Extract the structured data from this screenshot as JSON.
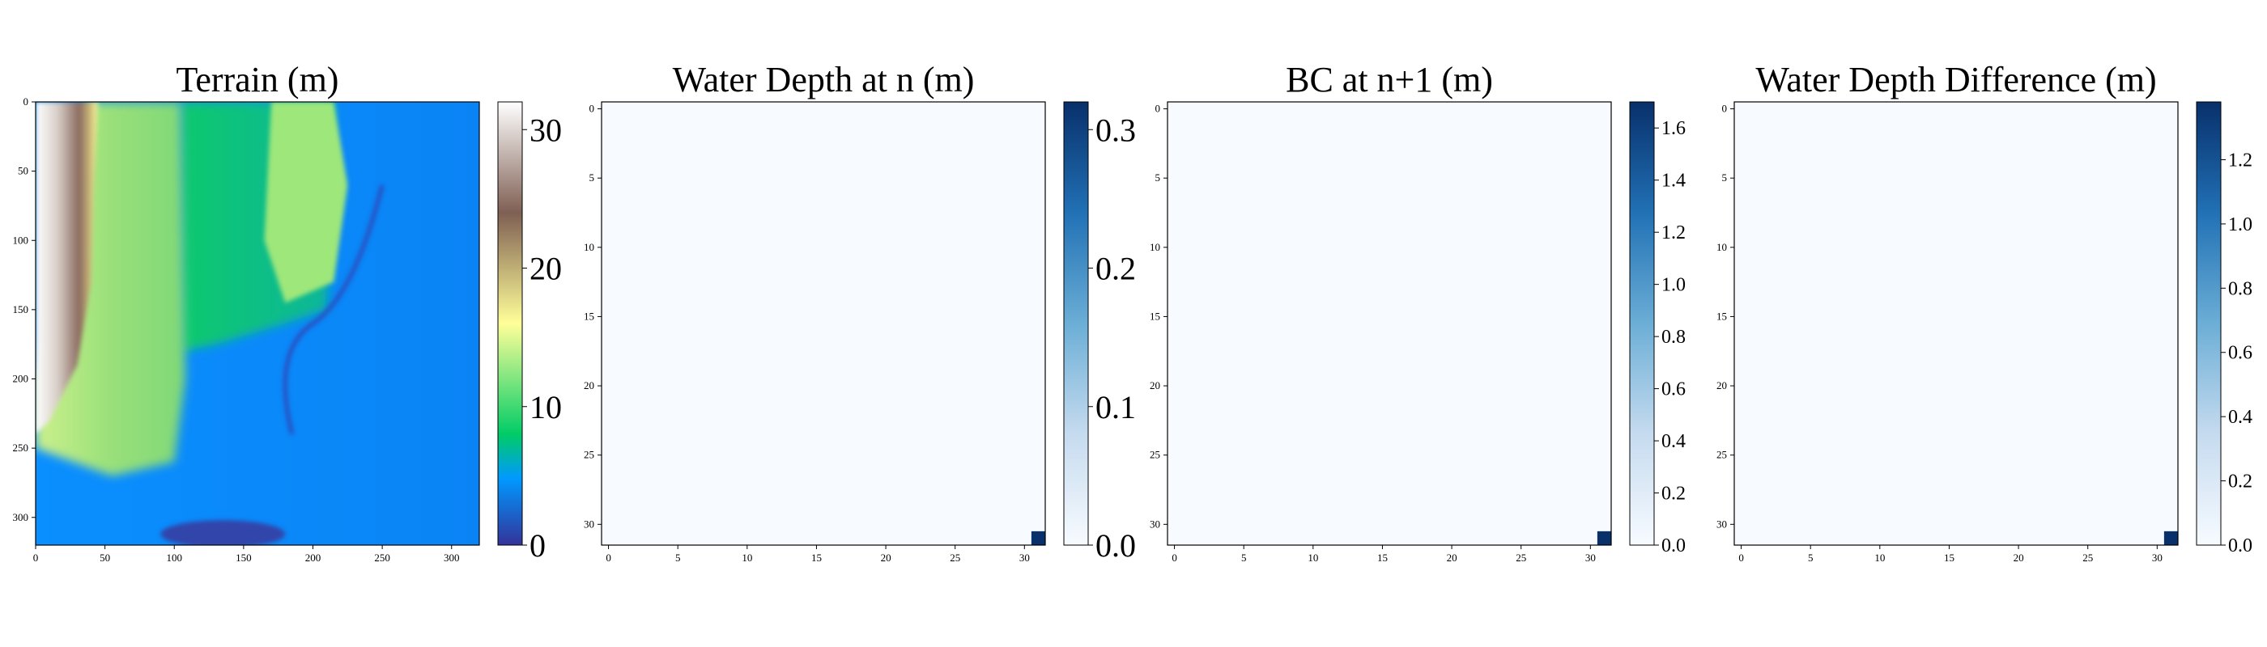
{
  "chart_data": [
    {
      "type": "heatmap",
      "title": "Terrain (m)",
      "xlabel": "",
      "ylabel": "",
      "x_ticks": [
        0,
        50,
        100,
        150,
        200,
        250,
        300
      ],
      "y_ticks": [
        0,
        50,
        100,
        150,
        200,
        250,
        300
      ],
      "xlim": [
        0,
        320
      ],
      "ylim": [
        0,
        320
      ],
      "colorbar": {
        "min": 0,
        "max": 32,
        "ticks": [
          0,
          10,
          20,
          30
        ],
        "tick_labels": [
          "0",
          "10",
          "20",
          "30"
        ],
        "colormap": "terrain"
      },
      "features": {
        "ridge_x_range": [
          0,
          45
        ],
        "green_band_x_range": [
          45,
          115
        ],
        "green_patch_upper_right_peak": [
          190,
          0
        ],
        "channel_path": [
          [
            250,
            60
          ],
          [
            200,
            160
          ],
          [
            185,
            240
          ]
        ],
        "low_area_bottom": [
          [
            100,
            305
          ],
          [
            180,
            320
          ]
        ]
      }
    },
    {
      "type": "heatmap",
      "title": "Water Depth at n (m)",
      "xlabel": "",
      "ylabel": "",
      "x_ticks": [
        0,
        5,
        10,
        15,
        20,
        25,
        30
      ],
      "y_ticks": [
        0,
        5,
        10,
        15,
        20,
        25,
        30
      ],
      "grid_size": [
        32,
        32
      ],
      "nonzero_cells": [
        {
          "x": 31,
          "y": 31,
          "value": 0.32
        }
      ],
      "colorbar": {
        "min": 0,
        "max": 0.32,
        "ticks": [
          0.0,
          0.1,
          0.2,
          0.3
        ],
        "tick_labels": [
          "0.0",
          "0.1",
          "0.2",
          "0.3"
        ],
        "colormap": "Blues"
      }
    },
    {
      "type": "heatmap",
      "title": "BC at n+1 (m)",
      "xlabel": "",
      "ylabel": "",
      "x_ticks": [
        0,
        5,
        10,
        15,
        20,
        25,
        30
      ],
      "y_ticks": [
        0,
        5,
        10,
        15,
        20,
        25,
        30
      ],
      "grid_size": [
        32,
        32
      ],
      "nonzero_cells": [
        {
          "x": 31,
          "y": 31,
          "value": 1.7
        }
      ],
      "colorbar": {
        "min": 0,
        "max": 1.7,
        "ticks": [
          0.0,
          0.2,
          0.4,
          0.6,
          0.8,
          1.0,
          1.2,
          1.4,
          1.6
        ],
        "tick_labels": [
          "0.0",
          "0.2",
          "0.4",
          "0.6",
          "0.8",
          "1.0",
          "1.2",
          "1.4",
          "1.6"
        ],
        "colormap": "Blues"
      }
    },
    {
      "type": "heatmap",
      "title": "Water Depth Difference (m)",
      "xlabel": "",
      "ylabel": "",
      "x_ticks": [
        0,
        5,
        10,
        15,
        20,
        25,
        30
      ],
      "y_ticks": [
        0,
        5,
        10,
        15,
        20,
        25,
        30
      ],
      "grid_size": [
        32,
        32
      ],
      "nonzero_cells": [
        {
          "x": 31,
          "y": 31,
          "value": 1.38
        }
      ],
      "colorbar": {
        "min": 0,
        "max": 1.38,
        "ticks": [
          0.0,
          0.2,
          0.4,
          0.6,
          0.8,
          1.0,
          1.2
        ],
        "tick_labels": [
          "0.0",
          "0.2",
          "0.4",
          "0.6",
          "0.8",
          "1.0",
          "1.2"
        ],
        "colormap": "Blues"
      }
    }
  ]
}
